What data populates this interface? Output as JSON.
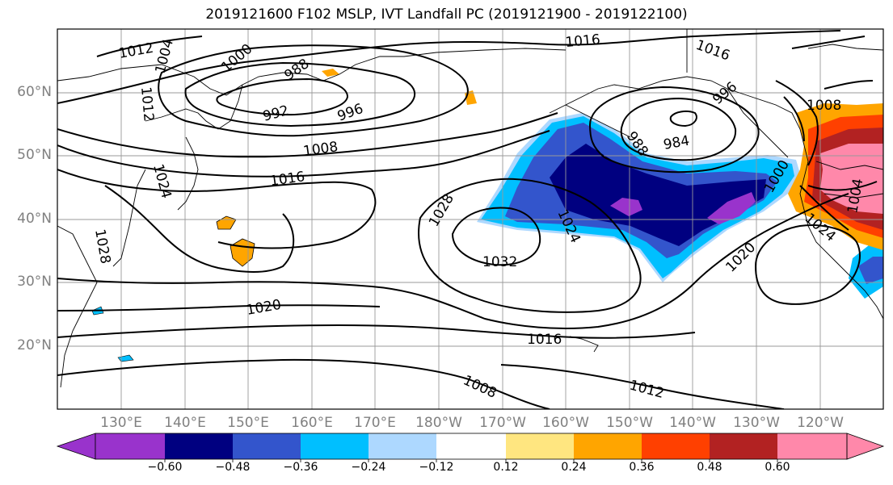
{
  "title": "2019121600 F102 MSLP, IVT Landfall PC (2019121900 - 2019122100)",
  "lat_labels": [
    "60°N",
    "50°N",
    "40°N",
    "30°N",
    "20°N"
  ],
  "lon_labels": [
    "130°E",
    "140°E",
    "150°E",
    "160°E",
    "170°E",
    "180°W",
    "170°W",
    "160°W",
    "150°W",
    "140°W",
    "130°W",
    "120°W"
  ],
  "isobar_labels": [
    "1012",
    "1004",
    "1000",
    "988",
    "992",
    "996",
    "1012",
    "1008",
    "1016",
    "1024",
    "1028",
    "1032",
    "1024",
    "1020",
    "1016",
    "1008",
    "1012",
    "1016",
    "1016",
    "988",
    "984",
    "996",
    "1008",
    "1000",
    "1024",
    "1020",
    "1028",
    "1004"
  ],
  "colorbar": {
    "ticks": [
      "−0.60",
      "−0.48",
      "−0.36",
      "−0.24",
      "−0.12",
      "0.12",
      "0.24",
      "0.36",
      "0.48",
      "0.60"
    ],
    "colors": [
      "#9933cc",
      "#000080",
      "#3355cc",
      "#00bfff",
      "#add8ff",
      "#ffffff",
      "#ffe680",
      "#ffa500",
      "#ff4000",
      "#b22222",
      "#ff88aa"
    ]
  }
}
